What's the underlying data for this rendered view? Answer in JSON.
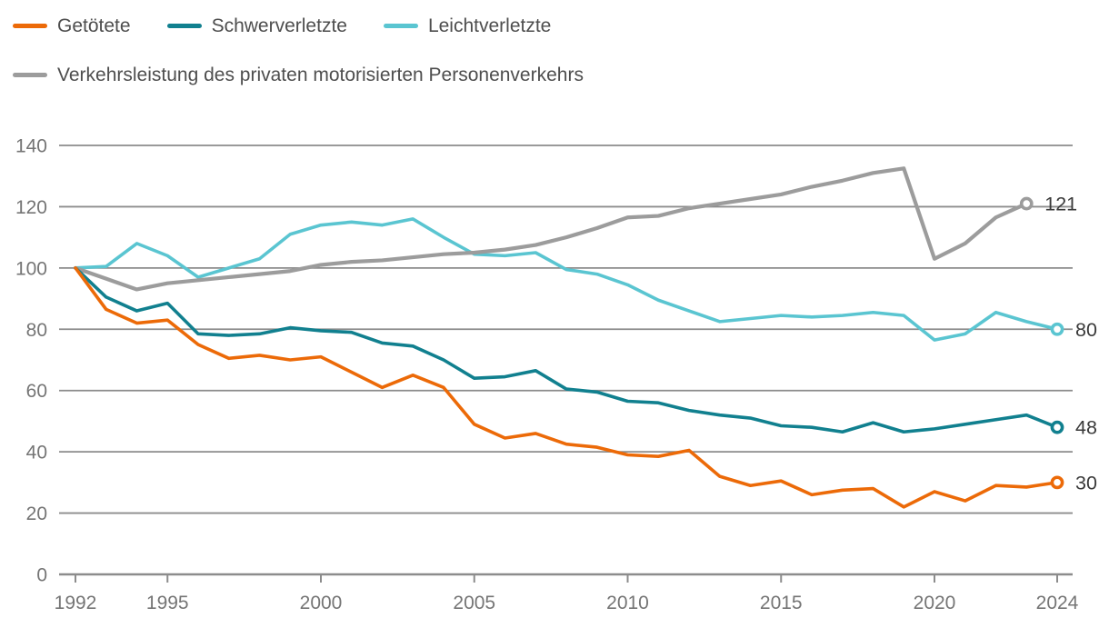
{
  "chart_data": {
    "type": "line",
    "title": "",
    "xlabel": "",
    "ylabel": "",
    "ylim": [
      0,
      140
    ],
    "yticks": [
      0,
      20,
      40,
      60,
      80,
      100,
      120,
      140
    ],
    "xticks": [
      1992,
      1995,
      2000,
      2005,
      2010,
      2015,
      2020,
      2024
    ],
    "grid": true,
    "legend_position": "top-left",
    "x": [
      1992,
      1993,
      1994,
      1995,
      1996,
      1997,
      1998,
      1999,
      2000,
      2001,
      2002,
      2003,
      2004,
      2005,
      2006,
      2007,
      2008,
      2009,
      2010,
      2011,
      2012,
      2013,
      2014,
      2015,
      2016,
      2017,
      2018,
      2019,
      2020,
      2021,
      2022,
      2023,
      2024
    ],
    "series": [
      {
        "id": "getoetete",
        "name": "Getötete",
        "color": "#ec6a08",
        "end_label": "30",
        "values": [
          100,
          86.5,
          82,
          83,
          75,
          70.5,
          71.5,
          70,
          71,
          66,
          61,
          65,
          61,
          49,
          44.5,
          46,
          42.5,
          41.5,
          39,
          38.5,
          40.5,
          32,
          29,
          30.5,
          26,
          27.5,
          28,
          22,
          27,
          24,
          29,
          28.5,
          30
        ]
      },
      {
        "id": "schwerverletzte",
        "name": "Schwerverletzte",
        "color": "#11808f",
        "end_label": "48",
        "values": [
          100,
          90.5,
          86,
          88.5,
          78.5,
          78,
          78.5,
          80.5,
          79.5,
          79,
          75.5,
          74.5,
          70,
          64,
          64.5,
          66.5,
          60.5,
          59.5,
          56.5,
          56,
          53.5,
          52,
          51,
          48.5,
          48,
          46.5,
          49.5,
          46.5,
          47.5,
          49,
          50.5,
          52,
          48
        ]
      },
      {
        "id": "leichtverletzte",
        "name": "Leichtverletzte",
        "color": "#5ac5d1",
        "end_label": "80",
        "values": [
          100,
          100.5,
          108,
          104,
          97,
          100,
          103,
          111,
          114,
          115,
          114,
          116,
          110,
          104.5,
          104,
          105,
          99.5,
          98,
          94.5,
          89.5,
          86,
          82.5,
          83.5,
          84.5,
          84,
          84.5,
          85.5,
          84.5,
          76.5,
          78.5,
          85.5,
          82.5,
          80
        ]
      },
      {
        "id": "verkehrsleistung",
        "name": "Verkehrsleistung des privaten motorisierten Personenverkehrs",
        "color": "#9c9c9c",
        "end_label": "121",
        "values": [
          100,
          96.5,
          93,
          95,
          96,
          97,
          98,
          99,
          101,
          102,
          102.5,
          103.5,
          104.5,
          105,
          106,
          107.5,
          110,
          113,
          116.5,
          117,
          119.5,
          121,
          122.5,
          124,
          126.5,
          128.5,
          131,
          132.5,
          103,
          108,
          116.5,
          121
        ]
      }
    ],
    "axis_colors": {
      "tick_label": "#757575",
      "grid": "#8c8c8c",
      "end_value_label": "#3a3a3a"
    }
  }
}
